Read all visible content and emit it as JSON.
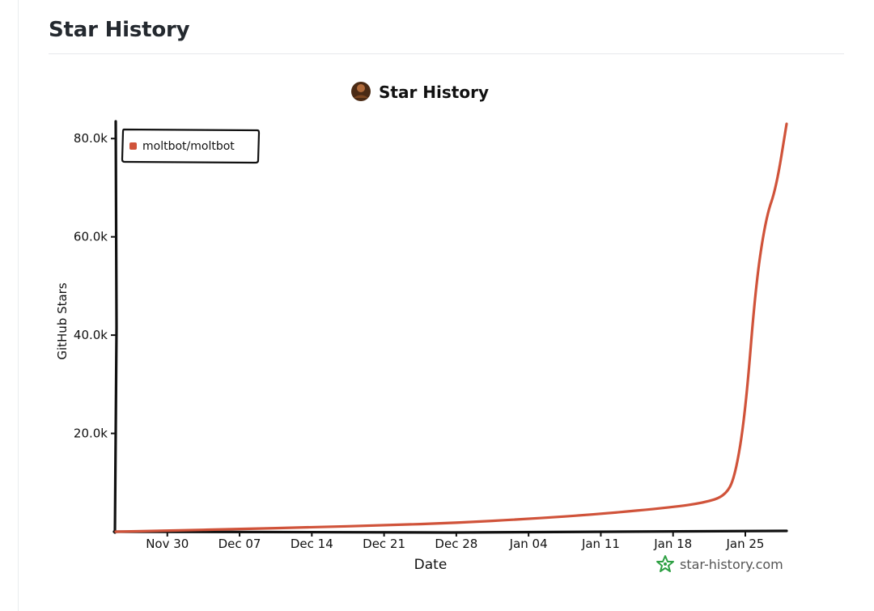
{
  "page": {
    "heading": "Star History"
  },
  "chart_data": {
    "type": "line",
    "title": "Star History",
    "xlabel": "Date",
    "ylabel": "GitHub Stars",
    "x_ticks": [
      "Nov 30",
      "Dec 07",
      "Dec 14",
      "Dec 21",
      "Dec 28",
      "Jan 04",
      "Jan 11",
      "Jan 18",
      "Jan 25"
    ],
    "y_ticks": [
      "20.0k",
      "40.0k",
      "60.0k",
      "80.0k"
    ],
    "y_tick_values": [
      20000,
      40000,
      60000,
      80000
    ],
    "ylim": [
      0,
      83000
    ],
    "xlim": [
      "2025-11-25",
      "2026-01-29"
    ],
    "grid": false,
    "legend_position": "top-left",
    "series": [
      {
        "name": "moltbot/moltbot",
        "color": "#d0533a",
        "points": [
          {
            "date": "2025-11-25",
            "stars": 0
          },
          {
            "date": "2025-11-30",
            "stars": 200
          },
          {
            "date": "2025-12-07",
            "stars": 550
          },
          {
            "date": "2025-12-14",
            "stars": 900
          },
          {
            "date": "2025-12-21",
            "stars": 1300
          },
          {
            "date": "2025-12-28",
            "stars": 1800
          },
          {
            "date": "2026-01-04",
            "stars": 2600
          },
          {
            "date": "2026-01-11",
            "stars": 3600
          },
          {
            "date": "2026-01-18",
            "stars": 5000
          },
          {
            "date": "2026-01-21",
            "stars": 5900
          },
          {
            "date": "2026-01-23",
            "stars": 7200
          },
          {
            "date": "2026-01-24",
            "stars": 11000
          },
          {
            "date": "2026-01-25",
            "stars": 24000
          },
          {
            "date": "2026-01-26",
            "stars": 50000
          },
          {
            "date": "2026-01-27",
            "stars": 64000
          },
          {
            "date": "2026-01-28",
            "stars": 70000
          },
          {
            "date": "2026-01-29",
            "stars": 83000
          }
        ]
      }
    ]
  },
  "watermark": {
    "text": "star-history.com",
    "icon": "star-history-logo-icon",
    "color": "#2ea043"
  },
  "title_avatar": {
    "icon": "owner-avatar-icon"
  }
}
